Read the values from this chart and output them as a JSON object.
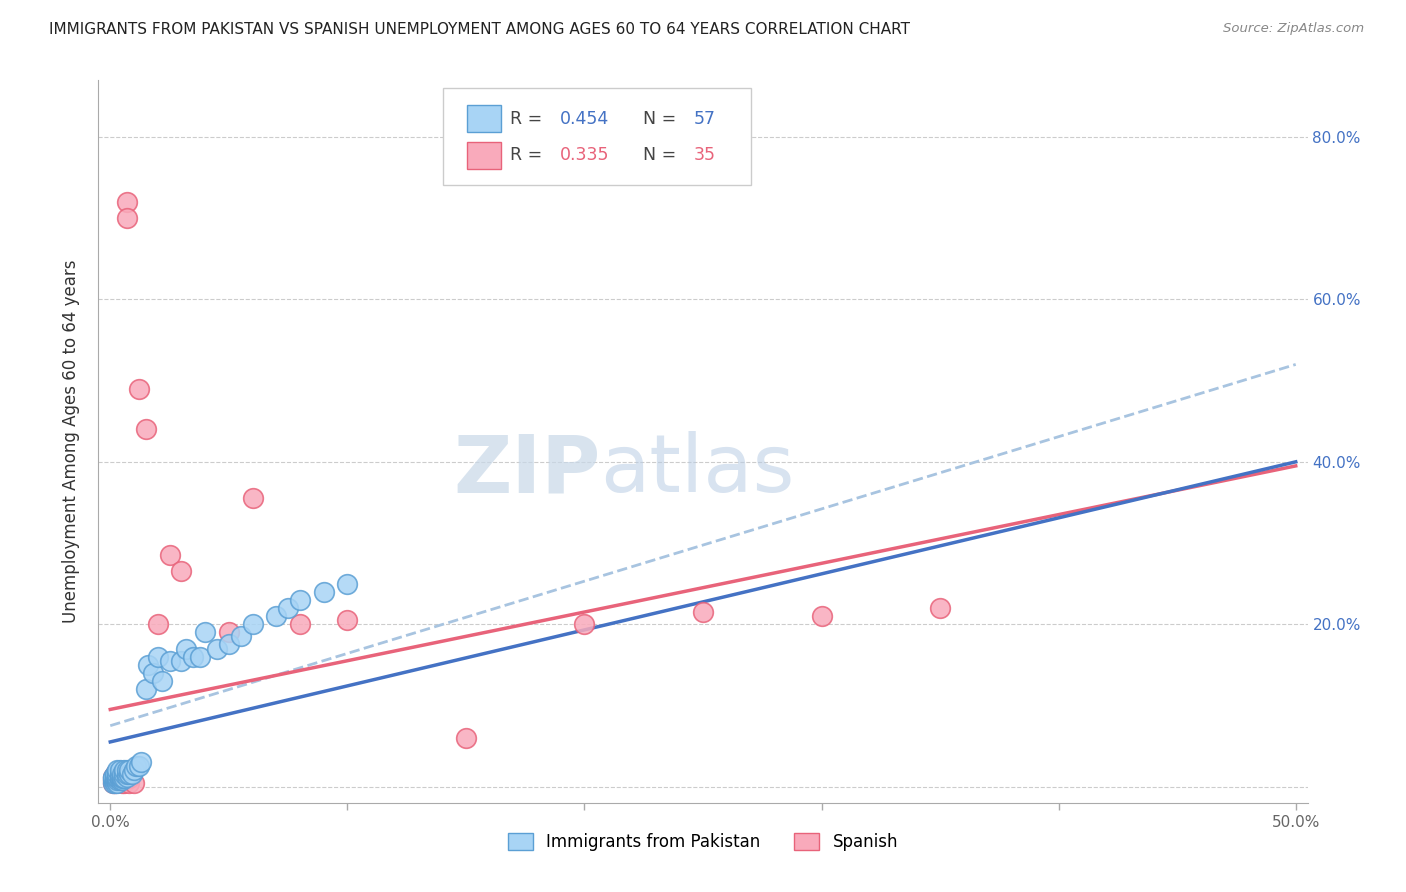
{
  "title": "IMMIGRANTS FROM PAKISTAN VS SPANISH UNEMPLOYMENT AMONG AGES 60 TO 64 YEARS CORRELATION CHART",
  "source": "Source: ZipAtlas.com",
  "ylabel": "Unemployment Among Ages 60 to 64 years",
  "xlim": [
    -0.005,
    0.505
  ],
  "ylim": [
    -0.02,
    0.87
  ],
  "x_ticks": [
    0.0,
    0.1,
    0.2,
    0.3,
    0.4,
    0.5
  ],
  "x_tick_labels": [
    "0.0%",
    "",
    "",
    "",
    "",
    "50.0%"
  ],
  "y_ticks": [
    0.0,
    0.2,
    0.4,
    0.6,
    0.8
  ],
  "y_tick_labels_left": [
    "",
    "",
    "",
    "",
    ""
  ],
  "y_tick_labels_right": [
    "",
    "20.0%",
    "40.0%",
    "60.0%",
    "80.0%"
  ],
  "legend_R1": "0.454",
  "legend_N1": "57",
  "legend_R2": "0.335",
  "legend_N2": "35",
  "color_blue": "#A8D4F5",
  "color_pink": "#F9AABB",
  "color_blue_edge": "#5B9FD4",
  "color_pink_edge": "#E8637A",
  "color_blue_line": "#4472C4",
  "color_pink_line": "#E8637A",
  "color_dashed": "#A8C4E0",
  "watermark_zip": "ZIP",
  "watermark_atlas": "atlas",
  "blue_scatter_x": [
    0.001,
    0.001,
    0.001,
    0.001,
    0.002,
    0.002,
    0.002,
    0.002,
    0.002,
    0.003,
    0.003,
    0.003,
    0.003,
    0.003,
    0.003,
    0.004,
    0.004,
    0.004,
    0.004,
    0.004,
    0.005,
    0.005,
    0.005,
    0.005,
    0.006,
    0.006,
    0.006,
    0.007,
    0.007,
    0.007,
    0.008,
    0.008,
    0.009,
    0.01,
    0.011,
    0.012,
    0.013,
    0.015,
    0.016,
    0.018,
    0.02,
    0.022,
    0.025,
    0.03,
    0.032,
    0.035,
    0.038,
    0.04,
    0.045,
    0.05,
    0.055,
    0.06,
    0.07,
    0.075,
    0.08,
    0.09,
    0.1
  ],
  "blue_scatter_y": [
    0.005,
    0.008,
    0.01,
    0.012,
    0.005,
    0.008,
    0.01,
    0.012,
    0.015,
    0.005,
    0.008,
    0.01,
    0.012,
    0.015,
    0.02,
    0.008,
    0.01,
    0.012,
    0.015,
    0.02,
    0.008,
    0.01,
    0.012,
    0.015,
    0.01,
    0.015,
    0.02,
    0.012,
    0.015,
    0.02,
    0.015,
    0.02,
    0.015,
    0.02,
    0.025,
    0.025,
    0.03,
    0.12,
    0.15,
    0.14,
    0.16,
    0.13,
    0.155,
    0.155,
    0.17,
    0.16,
    0.16,
    0.19,
    0.17,
    0.175,
    0.185,
    0.2,
    0.21,
    0.22,
    0.23,
    0.24,
    0.25
  ],
  "pink_scatter_x": [
    0.001,
    0.001,
    0.001,
    0.002,
    0.002,
    0.002,
    0.003,
    0.003,
    0.004,
    0.004,
    0.004,
    0.005,
    0.005,
    0.005,
    0.006,
    0.006,
    0.007,
    0.007,
    0.008,
    0.008,
    0.01,
    0.012,
    0.015,
    0.02,
    0.025,
    0.03,
    0.05,
    0.06,
    0.08,
    0.1,
    0.15,
    0.2,
    0.25,
    0.3,
    0.35
  ],
  "pink_scatter_y": [
    0.005,
    0.008,
    0.012,
    0.005,
    0.01,
    0.015,
    0.008,
    0.012,
    0.008,
    0.012,
    0.018,
    0.005,
    0.01,
    0.015,
    0.005,
    0.01,
    0.72,
    0.7,
    0.005,
    0.01,
    0.005,
    0.49,
    0.44,
    0.2,
    0.285,
    0.265,
    0.19,
    0.355,
    0.2,
    0.205,
    0.06,
    0.2,
    0.215,
    0.21,
    0.22
  ],
  "blue_line_x": [
    0.0,
    0.5
  ],
  "blue_line_y": [
    0.055,
    0.4
  ],
  "pink_line_x": [
    0.0,
    0.5
  ],
  "pink_line_y": [
    0.095,
    0.395
  ],
  "dashed_line_x": [
    0.0,
    0.5
  ],
  "dashed_line_y": [
    0.075,
    0.52
  ]
}
